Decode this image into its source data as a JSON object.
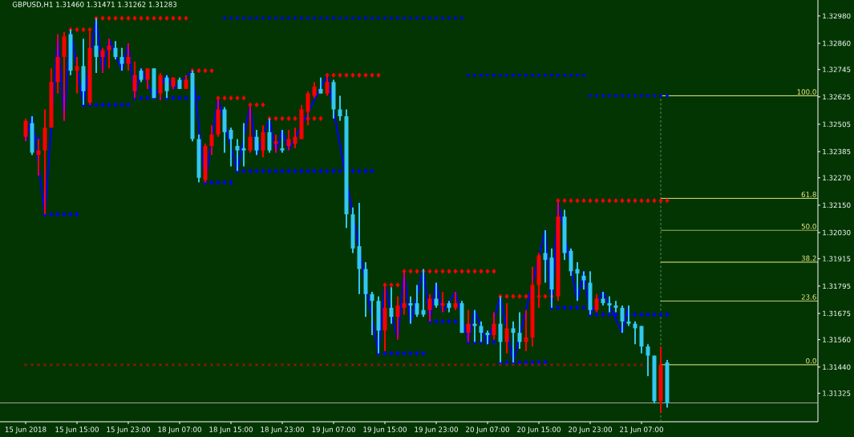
{
  "chart_data": {
    "type": "candlestick",
    "title": "GBPUSD,H1 1.31460 1.31471 1.31262 1.31283",
    "categories": [
      "15 Jun 2018",
      null,
      null,
      null,
      null,
      null,
      null,
      null,
      "15 Jun 15:00",
      null,
      null,
      null,
      null,
      null,
      null,
      null,
      "15 Jun 23:00",
      null,
      null,
      null,
      null,
      null,
      null,
      null,
      "18 Jun 07:00",
      null,
      null,
      null,
      null,
      null,
      null,
      null,
      "18 Jun 15:00",
      null,
      null,
      null,
      null,
      null,
      null,
      null,
      "18 Jun 23:00",
      null,
      null,
      null,
      null,
      null,
      null,
      null,
      "19 Jun 07:00",
      null,
      null,
      null,
      null,
      null,
      null,
      null,
      "19 Jun 15:00",
      null,
      null,
      null,
      null,
      null,
      null,
      null,
      "19 Jun 23:00",
      null,
      null,
      null,
      null,
      null,
      null,
      null,
      "20 Jun 07:00",
      null,
      null,
      null,
      null,
      null,
      null,
      null,
      "20 Jun 15:00",
      null,
      null,
      null,
      null,
      null,
      null,
      null,
      "20 Jun 23:00",
      null,
      null,
      null,
      null,
      null,
      null,
      null,
      "21 Jun 07:00",
      null,
      null,
      null,
      null,
      null,
      null,
      null,
      null,
      null,
      null,
      null,
      null,
      null,
      null,
      null,
      null,
      null,
      null,
      null,
      null,
      null,
      null,
      null,
      null,
      null,
      null,
      null
    ],
    "ohlc": [
      [
        1.3245,
        1.3253,
        1.3243,
        1.3252
      ],
      [
        1.3251,
        1.3254,
        1.3237,
        1.3238
      ],
      [
        1.3237,
        1.3244,
        1.3228,
        1.3239
      ],
      [
        1.3239,
        1.3257,
        1.3211,
        1.3249
      ],
      [
        1.3249,
        1.3275,
        1.3249,
        1.3269
      ],
      [
        1.3269,
        1.329,
        1.3264,
        1.328
      ],
      [
        1.328,
        1.3291,
        1.3252,
        1.3289
      ],
      [
        1.329,
        1.3292,
        1.3272,
        1.3274
      ],
      [
        1.3274,
        1.328,
        1.3264,
        1.3276
      ],
      [
        1.3276,
        1.3288,
        1.3259,
        1.3265
      ],
      [
        1.326,
        1.3292,
        1.3259,
        1.3284
      ],
      [
        1.3285,
        1.3297,
        1.3273,
        1.328
      ],
      [
        1.328,
        1.3284,
        1.3273,
        1.3283
      ],
      [
        1.3283,
        1.3288,
        1.3275,
        1.3285
      ],
      [
        1.3284,
        1.3287,
        1.3279,
        1.328
      ],
      [
        1.328,
        1.3284,
        1.3274,
        1.3277
      ],
      [
        1.3277,
        1.3286,
        1.3274,
        1.328
      ],
      [
        1.3265,
        1.3278,
        1.3262,
        1.3272
      ],
      [
        1.3274,
        1.3275,
        1.3269,
        1.327
      ],
      [
        1.327,
        1.3275,
        1.3266,
        1.3275
      ],
      [
        1.3275,
        1.3275,
        1.3262,
        1.3262
      ],
      [
        1.3264,
        1.3273,
        1.3261,
        1.3272
      ],
      [
        1.3271,
        1.3272,
        1.3262,
        1.3265
      ],
      [
        1.3267,
        1.3271,
        1.3266,
        1.3271
      ],
      [
        1.327,
        1.3271,
        1.3266,
        1.3266
      ],
      [
        1.3266,
        1.3272,
        1.3266,
        1.327
      ],
      [
        1.3273,
        1.3274,
        1.3243,
        1.3244
      ],
      [
        1.3244,
        1.3246,
        1.3225,
        1.3227
      ],
      [
        1.3226,
        1.3242,
        1.3225,
        1.3241
      ],
      [
        1.3241,
        1.325,
        1.3237,
        1.3246
      ],
      [
        1.3246,
        1.3262,
        1.3245,
        1.3257
      ],
      [
        1.3257,
        1.3258,
        1.3238,
        1.3247
      ],
      [
        1.3248,
        1.3249,
        1.3232,
        1.3244
      ],
      [
        1.3241,
        1.3244,
        1.323,
        1.3239
      ],
      [
        1.324,
        1.3251,
        1.3232,
        1.3239
      ],
      [
        1.3239,
        1.3259,
        1.3238,
        1.3245
      ],
      [
        1.3245,
        1.3248,
        1.3237,
        1.3239
      ],
      [
        1.3239,
        1.325,
        1.3236,
        1.3247
      ],
      [
        1.3247,
        1.3253,
        1.3238,
        1.3239
      ],
      [
        1.3242,
        1.3246,
        1.3238,
        1.3243
      ],
      [
        1.324,
        1.3248,
        1.3238,
        1.3239
      ],
      [
        1.3241,
        1.3248,
        1.3239,
        1.3244
      ],
      [
        1.3242,
        1.3249,
        1.324,
        1.3245
      ],
      [
        1.3244,
        1.3259,
        1.3244,
        1.3257
      ],
      [
        1.3256,
        1.3265,
        1.325,
        1.3264
      ],
      [
        1.3263,
        1.3269,
        1.3262,
        1.3267
      ],
      [
        1.3266,
        1.3271,
        1.3264,
        1.3264
      ],
      [
        1.3264,
        1.3272,
        1.3263,
        1.3269
      ],
      [
        1.3269,
        1.327,
        1.3253,
        1.3257
      ],
      [
        1.3257,
        1.3263,
        1.3252,
        1.3254
      ],
      [
        1.3254,
        1.3257,
        1.3205,
        1.3211
      ],
      [
        1.3211,
        1.3214,
        1.3194,
        1.3196
      ],
      [
        1.3197,
        1.3216,
        1.3176,
        1.3187
      ],
      [
        1.3187,
        1.319,
        1.3166,
        1.3176
      ],
      [
        1.3176,
        1.3177,
        1.3158,
        1.3173
      ],
      [
        1.3173,
        1.3175,
        1.315,
        1.316
      ],
      [
        1.316,
        1.318,
        1.3151,
        1.317
      ],
      [
        1.317,
        1.3179,
        1.3163,
        1.3166
      ],
      [
        1.3166,
        1.3175,
        1.3156,
        1.3171
      ],
      [
        1.317,
        1.3186,
        1.3167,
        1.3172
      ],
      [
        1.3172,
        1.3175,
        1.3163,
        1.3171
      ],
      [
        1.3172,
        1.318,
        1.3166,
        1.3167
      ],
      [
        1.3169,
        1.3187,
        1.3166,
        1.3167
      ],
      [
        1.3169,
        1.3176,
        1.3164,
        1.3174
      ],
      [
        1.3174,
        1.3181,
        1.317,
        1.3171
      ],
      [
        1.3171,
        1.3177,
        1.3168,
        1.3172
      ],
      [
        1.3172,
        1.3173,
        1.3168,
        1.317
      ],
      [
        1.317,
        1.3177,
        1.3169,
        1.3172
      ],
      [
        1.3172,
        1.3173,
        1.3159,
        1.3159
      ],
      [
        1.3159,
        1.3169,
        1.3155,
        1.3163
      ],
      [
        1.3163,
        1.3169,
        1.3155,
        1.3162
      ],
      [
        1.3162,
        1.3164,
        1.3155,
        1.3159
      ],
      [
        1.3159,
        1.316,
        1.3154,
        1.3158
      ],
      [
        1.3158,
        1.3168,
        1.3156,
        1.3163
      ],
      [
        1.3163,
        1.3175,
        1.3146,
        1.3155
      ],
      [
        1.3155,
        1.3172,
        1.315,
        1.3161
      ],
      [
        1.3161,
        1.3164,
        1.3146,
        1.3159
      ],
      [
        1.3159,
        1.3168,
        1.3152,
        1.3155
      ],
      [
        1.3155,
        1.3169,
        1.3151,
        1.3157
      ],
      [
        1.3157,
        1.3188,
        1.3153,
        1.318
      ],
      [
        1.318,
        1.3194,
        1.317,
        1.3193
      ],
      [
        1.3194,
        1.3204,
        1.3181,
        1.3191
      ],
      [
        1.3192,
        1.3196,
        1.317,
        1.3178
      ],
      [
        1.3175,
        1.3217,
        1.3173,
        1.321
      ],
      [
        1.321,
        1.3213,
        1.3191,
        1.3194
      ],
      [
        1.3195,
        1.3196,
        1.3184,
        1.3186
      ],
      [
        1.3187,
        1.319,
        1.3173,
        1.3185
      ],
      [
        1.3184,
        1.3186,
        1.3178,
        1.3182
      ],
      [
        1.3181,
        1.3186,
        1.3167,
        1.3169
      ],
      [
        1.3169,
        1.3176,
        1.3168,
        1.3174
      ],
      [
        1.3174,
        1.3177,
        1.3171,
        1.3172
      ],
      [
        1.3172,
        1.3175,
        1.3168,
        1.3171
      ],
      [
        1.3171,
        1.3173,
        1.3168,
        1.317
      ],
      [
        1.317,
        1.3171,
        1.3159,
        1.3164
      ],
      [
        1.3164,
        1.3171,
        1.3162,
        1.3163
      ],
      [
        1.3163,
        1.3164,
        1.3154,
        1.3161
      ],
      [
        1.3162,
        1.3162,
        1.315,
        1.3153
      ],
      [
        1.3153,
        1.3154,
        1.314,
        1.3149
      ],
      [
        1.3149,
        1.3149,
        1.3128,
        1.3129
      ],
      [
        1.3129,
        1.3153,
        1.3124,
        1.3145
      ],
      [
        1.3146,
        1.31471,
        1.31262,
        1.31283
      ],
      null,
      null,
      null,
      null,
      null,
      null,
      null,
      null,
      null,
      null,
      null,
      null,
      null,
      null,
      null,
      null,
      null,
      null,
      null,
      null,
      null,
      null,
      null
    ],
    "colors": [
      "#ff0000",
      "#32c8f0",
      "#ff0000",
      "#ff0000",
      "#ff0000",
      "#ff0000",
      "#ff0000",
      "#32c8f0",
      "#ff0000",
      "#32c8f0",
      "#ff0000",
      "#32c8f0",
      "#ff0000",
      "#ff0000",
      "#32c8f0",
      "#32c8f0",
      "#ff0000",
      "#ff0000",
      "#32c8f0",
      "#ff0000",
      "#32c8f0",
      "#ff0000",
      "#32c8f0",
      "#ff0000",
      "#32c8f0",
      "#ff0000",
      "#32c8f0",
      "#32c8f0",
      "#ff0000",
      "#ff0000",
      "#ff0000",
      "#32c8f0",
      "#32c8f0",
      "#32c8f0",
      "#32c8f0",
      "#ff0000",
      "#32c8f0",
      "#ff0000",
      "#32c8f0",
      "#ff0000",
      "#32c8f0",
      "#ff0000",
      "#ff0000",
      "#ff0000",
      "#ff0000",
      "#ff0000",
      "#32c8f0",
      "#ff0000",
      "#32c8f0",
      "#32c8f0",
      "#32c8f0",
      "#32c8f0",
      "#32c8f0",
      "#32c8f0",
      "#32c8f0",
      "#32c8f0",
      "#ff0000",
      "#32c8f0",
      "#ff0000",
      "#ff0000",
      "#32c8f0",
      "#32c8f0",
      "#32c8f0",
      "#ff0000",
      "#32c8f0",
      "#ff0000",
      "#32c8f0",
      "#ff0000",
      "#32c8f0",
      "#ff0000",
      "#32c8f0",
      "#32c8f0",
      "#32c8f0",
      "#ff0000",
      "#32c8f0",
      "#ff0000",
      "#32c8f0",
      "#32c8f0",
      "#ff0000",
      "#ff0000",
      "#ff0000",
      "#32c8f0",
      "#32c8f0",
      "#ff0000",
      "#32c8f0",
      "#32c8f0",
      "#32c8f0",
      "#32c8f0",
      "#32c8f0",
      "#ff0000",
      "#32c8f0",
      "#32c8f0",
      "#32c8f0",
      "#32c8f0",
      "#32c8f0",
      "#32c8f0",
      "#32c8f0",
      "#32c8f0",
      "#32c8f0",
      "#ff0000",
      "#32c8f0",
      null,
      null,
      null,
      null,
      null,
      null,
      null,
      null,
      null,
      null,
      null,
      null,
      null,
      null,
      null,
      null,
      null,
      null,
      null,
      null,
      null,
      null,
      null
    ],
    "ylim": [
      1.312,
      1.3305
    ],
    "yticks": [
      {
        "value": 1.3298,
        "label": "1.32980"
      },
      {
        "value": 1.3286,
        "label": "1.32860"
      },
      {
        "value": 1.32745,
        "label": "1.32745"
      },
      {
        "value": 1.32625,
        "label": "1.32625"
      },
      {
        "value": 1.32505,
        "label": "1.32505"
      },
      {
        "value": 1.32385,
        "label": "1.32385"
      },
      {
        "value": 1.3227,
        "label": "1.32270"
      },
      {
        "value": 1.3215,
        "label": "1.32150"
      },
      {
        "value": 1.3203,
        "label": "1.32030"
      },
      {
        "value": 1.31915,
        "label": "1.31915"
      },
      {
        "value": 1.31795,
        "label": "1.31795"
      },
      {
        "value": 1.31675,
        "label": "1.31675"
      },
      {
        "value": 1.3156,
        "label": "1.31560"
      },
      {
        "value": 1.3144,
        "label": "1.31440"
      },
      {
        "value": 1.31325,
        "label": "1.31325"
      }
    ],
    "series": [
      {
        "type": "line",
        "color": "#0000ff",
        "values": [
          1.3243,
          1.3254,
          null,
          1.3211,
          null,
          1.329,
          1.3252,
          1.3292,
          null,
          1.3259,
          null,
          1.3297,
          1.3273,
          1.3288,
          null,
          1.3274,
          1.3286,
          1.3262,
          1.3275,
          null,
          1.3262,
          null,
          1.3272,
          1.3266,
          null,
          null,
          1.3274,
          null,
          1.3225,
          null,
          1.3262,
          null,
          null,
          1.323,
          null,
          1.3259,
          1.3237,
          null,
          1.3253,
          1.3238,
          1.3248,
          1.3239,
          null,
          null,
          null,
          null,
          null,
          1.3272,
          null,
          null,
          null,
          null,
          null,
          null,
          null,
          1.315,
          1.318,
          null,
          1.3156,
          1.3186,
          1.3163,
          null,
          1.3187,
          1.3164,
          1.3181,
          1.3168,
          null,
          1.3177,
          null,
          1.3155,
          1.3169,
          null,
          1.3154,
          null,
          1.3175,
          null,
          1.3146,
          null,
          null,
          null,
          null,
          1.3204,
          1.317,
          1.3217,
          null,
          null,
          1.3173,
          1.3186,
          1.3167,
          null,
          1.3177,
          null,
          null,
          1.3159,
          1.3171,
          null,
          null,
          null,
          null,
          null,
          null,
          null,
          null,
          null,
          null,
          null,
          null,
          null,
          null,
          null,
          null,
          null,
          null,
          null,
          null,
          null,
          null,
          null,
          null,
          null,
          null,
          null,
          null,
          null
        ]
      },
      {
        "type": "scatter",
        "marker": "diamond",
        "color": "#ff0000",
        "values": [
          null,
          null,
          null,
          null,
          null,
          null,
          null,
          1.3292,
          1.3292,
          1.3292,
          1.3292,
          1.3297,
          1.3297,
          1.3297,
          1.3297,
          1.3297,
          1.3297,
          1.3297,
          1.3297,
          1.3297,
          1.3297,
          1.3297,
          1.3297,
          1.3297,
          1.3297,
          1.3297,
          1.3274,
          1.3274,
          1.3274,
          1.3274,
          1.3262,
          1.3262,
          1.3262,
          1.3262,
          1.3262,
          1.3259,
          1.3259,
          1.3259,
          1.3253,
          1.3253,
          1.3253,
          1.3253,
          1.3253,
          1.3253,
          1.3253,
          1.3253,
          1.3253,
          1.3272,
          1.3272,
          1.3272,
          1.3272,
          1.3272,
          1.3272,
          1.3272,
          1.3272,
          1.3272,
          1.318,
          1.318,
          1.318,
          1.3186,
          1.3186,
          1.3186,
          1.3186,
          1.3186,
          1.3186,
          1.3186,
          1.3186,
          1.3186,
          1.3186,
          1.3186,
          1.3186,
          1.3186,
          1.3186,
          1.3186,
          1.3175,
          1.3175,
          1.3175,
          1.3175,
          1.3175,
          1.3175,
          1.3175,
          1.3175,
          1.3175,
          1.3217,
          1.3217,
          1.3217,
          1.3217,
          1.3217,
          1.3217,
          1.3217,
          1.3217,
          1.3217,
          1.3217,
          1.3217,
          1.3217,
          1.3217,
          1.3217,
          1.3217,
          1.3217,
          1.3217,
          1.3217,
          null,
          null,
          null,
          null,
          null,
          null,
          null,
          null,
          null,
          null,
          null,
          null,
          null,
          null,
          null,
          null,
          null,
          null,
          null,
          null,
          null,
          null,
          null
        ]
      },
      {
        "type": "scatter",
        "marker": "diamond",
        "color": "#0000ff",
        "values": [
          1.3244,
          1.3244,
          1.3244,
          1.3211,
          1.3211,
          1.3211,
          1.3211,
          1.3211,
          1.3211,
          1.3259,
          1.3259,
          1.3259,
          1.3259,
          1.3259,
          1.3259,
          1.3259,
          1.3259,
          1.3262,
          1.3262,
          1.3262,
          1.3262,
          1.3262,
          1.3262,
          1.3262,
          1.3262,
          1.3262,
          1.3262,
          1.3262,
          1.3225,
          1.3225,
          1.3225,
          1.3225,
          1.3225,
          1.323,
          1.323,
          1.323,
          1.323,
          1.323,
          1.323,
          1.323,
          1.323,
          1.323,
          1.323,
          1.323,
          1.323,
          1.323,
          1.323,
          1.323,
          1.323,
          1.323,
          1.323,
          1.323,
          1.323,
          1.323,
          1.323,
          1.315,
          1.315,
          1.315,
          1.315,
          1.315,
          1.315,
          1.315,
          1.315,
          1.3164,
          1.3164,
          1.3164,
          1.3164,
          1.3164,
          1.3164,
          1.3155,
          1.3155,
          1.3155,
          1.3155,
          1.3155,
          1.3146,
          1.3146,
          1.3146,
          1.3146,
          1.3146,
          1.3146,
          1.3146,
          1.3146,
          1.317,
          1.317,
          1.317,
          1.317,
          1.317,
          1.317,
          1.3167,
          1.3167,
          1.3167,
          1.3167,
          1.3167,
          1.3167,
          1.3167,
          1.3167,
          1.3167,
          1.3167,
          1.3167,
          1.3167,
          1.3167,
          null,
          null,
          null,
          null,
          null,
          null,
          null,
          null,
          null,
          null,
          null,
          null,
          null,
          null,
          null,
          null,
          null,
          null,
          null,
          null,
          null,
          null,
          null
        ]
      },
      {
        "type": "scatter",
        "marker": "square",
        "color": "#0000ff",
        "values": [
          null,
          null,
          null,
          null,
          null,
          null,
          null,
          null,
          null,
          null,
          null,
          null,
          null,
          null,
          null,
          null,
          null,
          null,
          null,
          null,
          null,
          null,
          null,
          null,
          null,
          null,
          null,
          null,
          null,
          null,
          null,
          1.3297,
          1.3297,
          1.3297,
          1.3297,
          1.3297,
          1.3297,
          1.3297,
          1.3297,
          1.3297,
          1.3297,
          1.3297,
          1.3297,
          1.3297,
          1.3297,
          1.3297,
          1.3297,
          1.3297,
          1.3297,
          1.3297,
          1.3297,
          1.3297,
          1.3297,
          1.3297,
          1.3297,
          1.3297,
          1.3297,
          1.3297,
          1.3297,
          1.3297,
          1.3297,
          1.3297,
          1.3297,
          1.3297,
          1.3297,
          1.3297,
          1.3297,
          1.3297,
          1.3297,
          1.3272,
          1.3272,
          1.3272,
          1.3272,
          1.3272,
          1.3272,
          1.3272,
          1.3272,
          1.3272,
          1.3272,
          1.3272,
          1.3272,
          1.3272,
          1.3272,
          1.3272,
          1.3272,
          1.3272,
          1.3272,
          1.3272,
          1.3263,
          1.3263,
          1.3263,
          1.3263,
          1.3263,
          1.3263,
          1.3263,
          1.3263,
          1.3263,
          1.3263,
          1.3263,
          1.3263,
          1.3263,
          null,
          null,
          null,
          null,
          null,
          null,
          null,
          null,
          null,
          null,
          null,
          null,
          null,
          null,
          null,
          null,
          null,
          null,
          null,
          null,
          null,
          null,
          null
        ]
      },
      {
        "type": "scatter",
        "marker": "cross",
        "color": "#ff0000",
        "values": [
          1.3145,
          1.3145,
          1.3145,
          1.3145,
          1.3145,
          1.3145,
          1.3145,
          1.3145,
          1.3145,
          1.3145,
          1.3145,
          1.3145,
          1.3145,
          1.3145,
          1.3145,
          1.3145,
          1.3145,
          1.3145,
          1.3145,
          1.3145,
          1.3145,
          1.3145,
          1.3145,
          1.3145,
          1.3145,
          1.3145,
          1.3145,
          1.3145,
          1.3145,
          1.3145,
          1.3145,
          1.3145,
          1.3145,
          1.3145,
          1.3145,
          1.3145,
          1.3145,
          1.3145,
          1.3145,
          1.3145,
          1.3145,
          1.3145,
          1.3145,
          1.3145,
          1.3145,
          1.3145,
          1.3145,
          1.3145,
          1.3145,
          1.3145,
          1.3145,
          1.3145,
          1.3145,
          1.3145,
          1.3145,
          1.3145,
          1.3145,
          1.3145,
          1.3145,
          1.3145,
          1.3145,
          1.3145,
          1.3145,
          1.3145,
          1.3145,
          1.3145,
          1.3145,
          1.3145,
          1.3145,
          1.3145,
          1.3145,
          1.3145,
          1.3145,
          1.3145,
          1.3145,
          1.3145,
          1.3145,
          1.3145,
          1.3145,
          1.3145,
          1.3145,
          1.3145,
          1.3145,
          1.3145,
          1.3145,
          1.3145,
          1.3145,
          1.3145,
          1.3145,
          1.3145,
          1.3145,
          1.3145,
          1.3145,
          1.3145,
          1.3145,
          1.3145,
          1.3145,
          1.3145,
          null,
          1.3145,
          null,
          null,
          null,
          null,
          null,
          null,
          null,
          null,
          null,
          null,
          null,
          null,
          null,
          null,
          null,
          null,
          null,
          null,
          null,
          null,
          null,
          null,
          null,
          null
        ]
      }
    ],
    "ref_lines": [
      {
        "axis": "y",
        "value": 1.3263,
        "color": "#eeee88"
      },
      {
        "axis": "y",
        "value": 1.3218,
        "color": "#eeee88"
      },
      {
        "axis": "y",
        "value": 1.3204,
        "color": "#eeee88"
      },
      {
        "axis": "y",
        "value": 1.319,
        "color": "#eeee88"
      },
      {
        "axis": "y",
        "value": 1.3173,
        "color": "#eeee88"
      },
      {
        "axis": "y",
        "value": 1.3145,
        "color": "#eeee88"
      },
      {
        "axis": "y",
        "value": 1.31283,
        "color": "#b4b4b4"
      }
    ],
    "annotations": [
      "100.0",
      "61.8",
      "50.0",
      "38.2",
      "23.6",
      "0.0"
    ]
  }
}
